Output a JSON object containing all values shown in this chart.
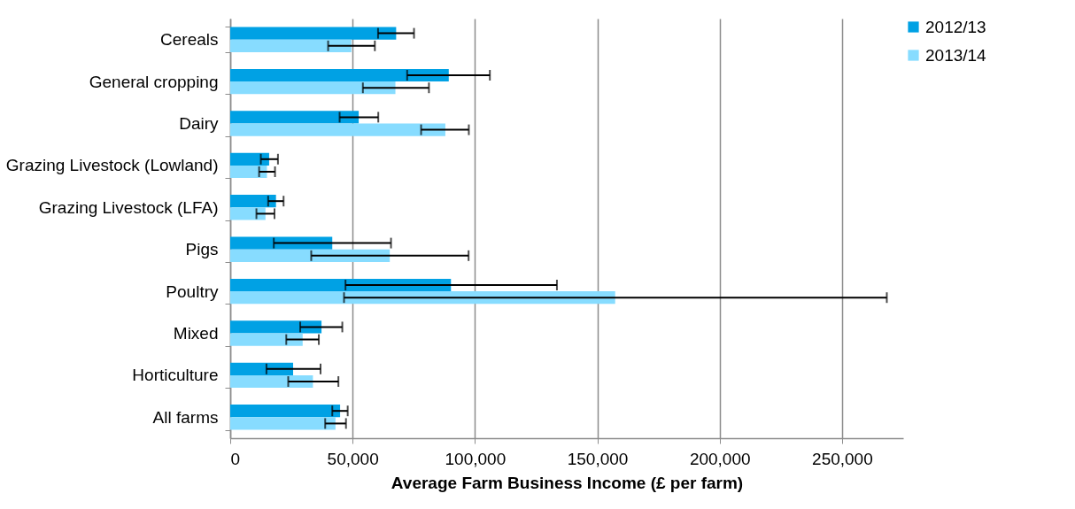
{
  "chart_data": {
    "type": "bar",
    "orientation": "horizontal",
    "xlabel": "Average Farm Business Income (£ per farm)",
    "categories": [
      "Cereals",
      "General cropping",
      "Dairy",
      "Grazing Livestock (Lowland)",
      "Grazing Livestock (LFA)",
      "Pigs",
      "Poultry",
      "Mixed",
      "Horticulture",
      "All farms"
    ],
    "series": [
      {
        "name": "2012/13",
        "color": "#00a1e4",
        "values": [
          67800,
          89300,
          52500,
          15900,
          18700,
          41700,
          90200,
          37300,
          25700,
          44900
        ],
        "errors": [
          [
            60400,
            75100
          ],
          [
            72300,
            106100
          ],
          [
            44700,
            60500
          ],
          [
            12500,
            19500
          ],
          [
            15500,
            21800
          ],
          [
            17800,
            65700
          ],
          [
            47100,
            133500
          ],
          [
            28600,
            45800
          ],
          [
            14800,
            36900
          ],
          [
            41700,
            48000
          ]
        ]
      },
      {
        "name": "2013/14",
        "color": "#87dcff",
        "values": [
          49500,
          67500,
          87900,
          15000,
          14400,
          65200,
          157300,
          29600,
          33800,
          43000
        ],
        "errors": [
          [
            40000,
            59100
          ],
          [
            54200,
            81200
          ],
          [
            78000,
            97500
          ],
          [
            11800,
            18300
          ],
          [
            10700,
            18100
          ],
          [
            33100,
            97400
          ],
          [
            46500,
            268300
          ],
          [
            22900,
            36200
          ],
          [
            23700,
            44200
          ],
          [
            38800,
            47300
          ]
        ]
      }
    ],
    "xlim": [
      0,
      275000
    ],
    "xticks": [
      0,
      {
        "value": 50000,
        "label": "50,000"
      },
      {
        "value": 100000,
        "label": "100,000"
      },
      {
        "value": 150000,
        "label": "150,000"
      },
      {
        "value": 200000,
        "label": "200,000"
      },
      {
        "value": 250000,
        "label": "250,000"
      }
    ],
    "grid": "x",
    "legend": "top right"
  }
}
